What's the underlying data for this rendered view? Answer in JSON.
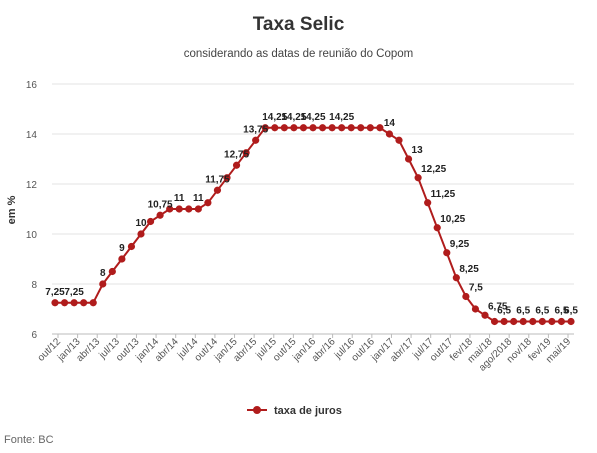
{
  "chart_data": {
    "type": "line",
    "title": "Taxa Selic",
    "subtitle": "considerando as datas de reunião do Copom",
    "ylabel": "em %",
    "xlabel": "",
    "ylim": [
      6,
      16
    ],
    "yticks": [
      6,
      8,
      10,
      12,
      14,
      16
    ],
    "grid": true,
    "legend_position": "bottom-center",
    "color": "#b01c1c",
    "x_tick_labels": [
      "out/12",
      "jan/13",
      "abr/13",
      "jul/13",
      "out/13",
      "jan/14",
      "abr/14",
      "jul/14",
      "out/14",
      "jan/15",
      "abr/15",
      "jul/15",
      "out/15",
      "jan/16",
      "abr/16",
      "jul/16",
      "out/16",
      "jan/17",
      "abr/17",
      "jul/17",
      "out/17",
      "fev/18",
      "mai/18",
      "ago/2018",
      "nov/18",
      "fev/19",
      "mai/19"
    ],
    "series": [
      {
        "name": "taxa de juros",
        "values": [
          7.25,
          7.25,
          7.25,
          7.25,
          7.25,
          8,
          8.5,
          9,
          9.5,
          10,
          10.5,
          10.75,
          11,
          11,
          11,
          11,
          11.25,
          11.75,
          12.25,
          12.75,
          13.25,
          13.75,
          14.25,
          14.25,
          14.25,
          14.25,
          14.25,
          14.25,
          14.25,
          14.25,
          14.25,
          14.25,
          14.25,
          14.25,
          14.25,
          14,
          13.75,
          13,
          12.25,
          11.25,
          10.25,
          9.25,
          8.25,
          7.5,
          7,
          6.75,
          6.5,
          6.5,
          6.5,
          6.5,
          6.5,
          6.5,
          6.5,
          6.5,
          6.5
        ],
        "labels": [
          "7,25",
          "",
          "7,25",
          "",
          "",
          "8",
          "",
          "9",
          "",
          "10",
          "",
          "10,75",
          "",
          "11",
          "",
          "11",
          "",
          "11,75",
          "",
          "12,75",
          "",
          "13,75",
          "",
          "14,25",
          "",
          "14,25",
          "",
          "14,25",
          "",
          "",
          "14,25",
          "",
          "",
          "",
          "",
          "14",
          "",
          "13",
          "12,25",
          "11,25",
          "10,25",
          "9,25",
          "8,25",
          "7,5",
          "",
          "6,75",
          "",
          "6,5",
          "",
          "6,5",
          "",
          "6,5",
          "",
          "6,5",
          "6,5"
        ]
      }
    ]
  },
  "footer": {
    "source": "Fonte: BC"
  }
}
